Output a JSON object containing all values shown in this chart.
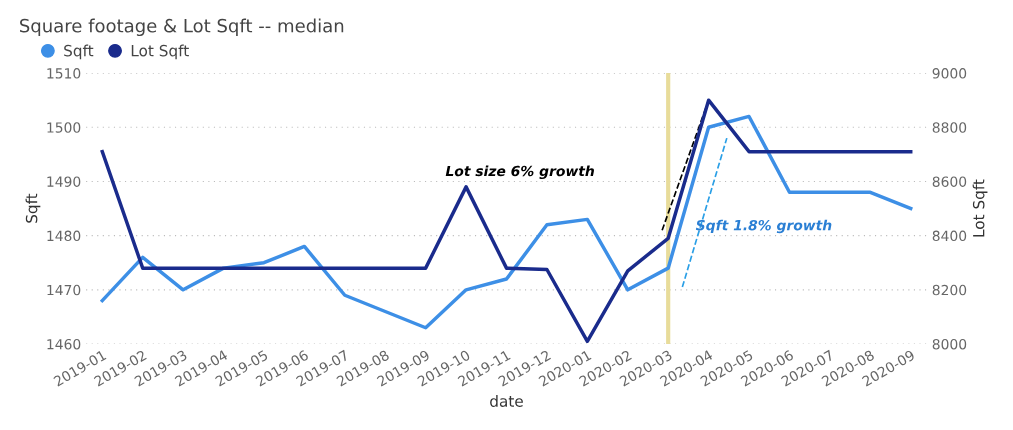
{
  "chart_data": {
    "type": "line",
    "title": "Square footage & Lot Sqft -- median",
    "xlabel": "date",
    "ylabel": "Sqft",
    "y2label": "Lot Sqft",
    "categories": [
      "2019-01",
      "2019-02",
      "2019-03",
      "2019-04",
      "2019-05",
      "2019-06",
      "2019-07",
      "2019-08",
      "2019-09",
      "2019-10",
      "2019-11",
      "2019-12",
      "2020-01",
      "2020-02",
      "2020-03",
      "2020-04",
      "2020-05",
      "2020-06",
      "2020-07",
      "2020-08",
      "2020-09"
    ],
    "series": [
      {
        "name": "Sqft",
        "color": "#3d8fe6",
        "values": [
          1468,
          1476,
          1470,
          1474,
          1475,
          1478,
          1469,
          1466,
          1463,
          1470,
          1472,
          1482,
          1483,
          1470,
          1474,
          1500,
          1502,
          1488,
          1488,
          1488,
          1485
        ]
      },
      {
        "name": "Lot Sqft",
        "color": "#1a2b8c",
        "axis": "y2",
        "values": [
          8710,
          8280,
          8280,
          8280,
          8280,
          8280,
          8280,
          8280,
          8280,
          8580,
          8280,
          8275,
          8010,
          8270,
          8390,
          8900,
          8710,
          8710,
          8710,
          8710,
          8710
        ]
      }
    ],
    "ylim": [
      1460,
      1510
    ],
    "yticks": [
      1460,
      1470,
      1480,
      1490,
      1500,
      1510
    ],
    "y2lim": [
      8000,
      9000
    ],
    "y2ticks": [
      8000,
      8200,
      8400,
      8600,
      8800,
      9000
    ],
    "ref_lines": [
      {
        "axis": "x",
        "value": "2020-03",
        "color": "#e8dc9a"
      }
    ],
    "annotations": [
      "Lot size 6% growth",
      "Sqft 1.8% growth"
    ],
    "grid": "y",
    "legend": "top left",
    "marker": "none",
    "line_style": "solid"
  }
}
